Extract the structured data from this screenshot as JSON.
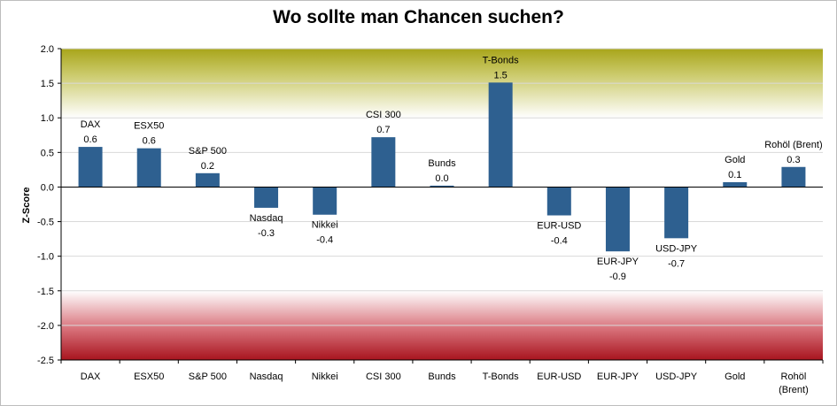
{
  "chart_data": {
    "type": "bar",
    "title": "Wo sollte man Chancen suchen?",
    "ylabel": "Z-Score",
    "xlabel": "",
    "ylim": [
      -2.5,
      2.0
    ],
    "yticks": [
      "2.0",
      "1.5",
      "1.0",
      "0.5",
      "0.0",
      "-0.5",
      "-1.0",
      "-1.5",
      "-2.0",
      "-2.5"
    ],
    "categories": [
      "DAX",
      "ESX50",
      "S&P 500",
      "Nasdaq",
      "Nikkei",
      "CSI 300",
      "Bunds",
      "T-Bonds",
      "EUR-USD",
      "EUR-JPY",
      "USD-JPY",
      "Gold",
      "Rohöl (Brent)"
    ],
    "values": [
      0.58,
      0.56,
      0.2,
      -0.3,
      -0.4,
      0.72,
      0.02,
      1.51,
      -0.41,
      -0.93,
      -0.74,
      0.07,
      0.29
    ],
    "data_labels": [
      "0.6",
      "0.6",
      "0.2",
      "-0.3",
      "-0.4",
      "0.7",
      "0.0",
      "1.5",
      "-0.4",
      "-0.9",
      "-0.7",
      "0.1",
      "0.3"
    ],
    "grid": true,
    "legend": "none",
    "colors": {
      "bar": "#2e6090",
      "band_top": "#a8a51a",
      "band_bottom": "#a8141e",
      "gridline": "#d9d9d9",
      "axis": "#000000"
    }
  }
}
